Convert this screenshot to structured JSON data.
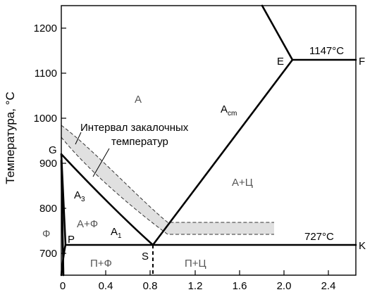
{
  "y_axis": {
    "title": "Температура, °C",
    "ticks": [
      {
        "label": "700",
        "value": 700
      },
      {
        "label": "800",
        "value": 800
      },
      {
        "label": "900",
        "value": 900
      },
      {
        "label": "1000",
        "value": 1000
      },
      {
        "label": "1100",
        "value": 1100
      },
      {
        "label": "1200",
        "value": 1200
      }
    ],
    "range": [
      650,
      1250
    ]
  },
  "x_axis": {
    "ticks": [
      {
        "label": "0",
        "value": 0
      },
      {
        "label": "0.4",
        "value": 0.4
      },
      {
        "label": "0.8",
        "value": 0.8
      },
      {
        "label": "1.2",
        "value": 1.2
      },
      {
        "label": "1.6",
        "value": 1.6
      },
      {
        "label": "2.0",
        "value": 2.0
      },
      {
        "label": "2.4",
        "value": 2.4
      }
    ],
    "range": [
      0,
      2.65
    ]
  },
  "points": {
    "G": "G",
    "P": "P",
    "S": "S",
    "E": "E",
    "F": "F",
    "K": "K"
  },
  "temperatures": {
    "eutectoid": "727°C",
    "eutectic": "1147°C"
  },
  "lines": {
    "A3": {
      "base": "A",
      "sub": "3"
    },
    "A1": {
      "base": "A",
      "sub": "1"
    },
    "Acm": {
      "base": "A",
      "sub": "cm"
    }
  },
  "regions": {
    "austenite": "A",
    "austenite_ferrite": "A+Ф",
    "austenite_cementite": "A+Ц",
    "ferrite": "Ф",
    "pearlite_ferrite": "П+Ф",
    "pearlite_cementite": "П+Ц"
  },
  "annotation": {
    "line1": "Интервал закалочных",
    "line2": "температур"
  },
  "colors": {
    "band_fill": "#e0e0e0",
    "line": "#000000",
    "phase_text": "#555555"
  }
}
